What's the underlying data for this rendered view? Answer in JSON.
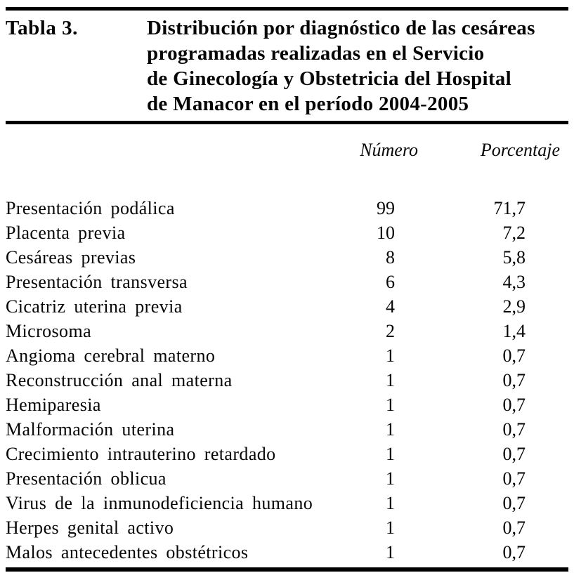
{
  "table": {
    "label": "Tabla 3.",
    "title_lines": [
      "Distribución por diagnóstico de las cesáreas",
      "programadas realizadas en el Servicio",
      "de Ginecología y Obstetricia del Hospital",
      "de Manacor en el período 2004-2005"
    ],
    "column_headers": {
      "numero": "Número",
      "porcentaje": "Porcentaje"
    },
    "rows": [
      {
        "diagnosis": "Presentación podálica",
        "numero": "99",
        "porcentaje": "71,7"
      },
      {
        "diagnosis": "Placenta previa",
        "numero": "10",
        "porcentaje": "7,2"
      },
      {
        "diagnosis": "Cesáreas previas",
        "numero": "8",
        "porcentaje": "5,8"
      },
      {
        "diagnosis": "Presentación transversa",
        "numero": "6",
        "porcentaje": "4,3"
      },
      {
        "diagnosis": "Cicatriz uterina previa",
        "numero": "4",
        "porcentaje": "2,9"
      },
      {
        "diagnosis": "Microsoma",
        "numero": "2",
        "porcentaje": "1,4"
      },
      {
        "diagnosis": "Angioma cerebral materno",
        "numero": "1",
        "porcentaje": "0,7"
      },
      {
        "diagnosis": "Reconstrucción anal materna",
        "numero": "1",
        "porcentaje": "0,7"
      },
      {
        "diagnosis": "Hemiparesia",
        "numero": "1",
        "porcentaje": "0,7"
      },
      {
        "diagnosis": "Malformación uterina",
        "numero": "1",
        "porcentaje": "0,7"
      },
      {
        "diagnosis": "Crecimiento intrauterino retardado",
        "numero": "1",
        "porcentaje": "0,7"
      },
      {
        "diagnosis": "Presentación oblicua",
        "numero": "1",
        "porcentaje": "0,7"
      },
      {
        "diagnosis": "Virus de la inmunodeficiencia humano",
        "numero": "1",
        "porcentaje": "0,7"
      },
      {
        "diagnosis": "Herpes genital activo",
        "numero": "1",
        "porcentaje": "0,7"
      },
      {
        "diagnosis": "Malos antecedentes obstétricos",
        "numero": "1",
        "porcentaje": "0,7"
      }
    ],
    "colors": {
      "text": "#060606",
      "rule": "#000000",
      "background": "#ffffff"
    }
  }
}
